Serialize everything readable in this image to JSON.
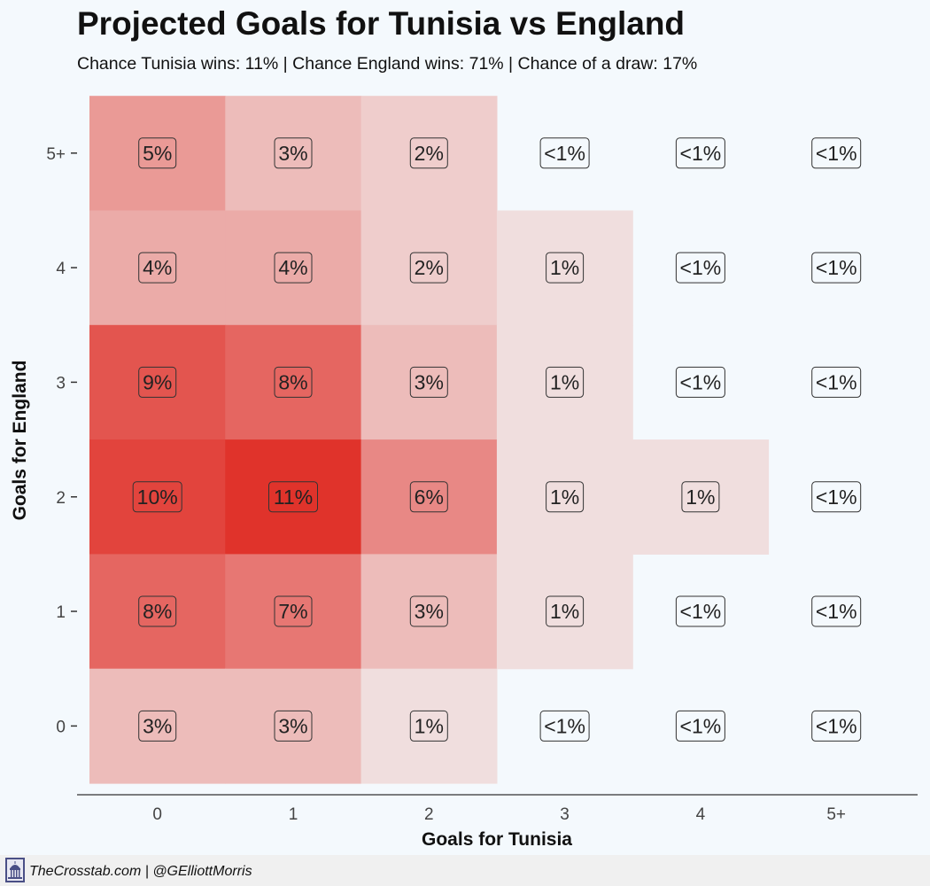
{
  "header": {
    "title": "Projected Goals for Tunisia vs England",
    "subtitle": "Chance Tunisia wins: 11% | Chance England wins: 71% | Chance of a draw: 17%"
  },
  "footer": {
    "credit": "TheCrosstab.com | @GElliottMorris",
    "logo_icon": "capitol-dome-icon"
  },
  "colors": {
    "background": "#f4f9fd",
    "low": "#f2eff0",
    "high": "#e0332b",
    "label_border": "#333333"
  },
  "chart_data": {
    "type": "heatmap",
    "title": "Projected Goals for Tunisia vs England",
    "xlabel": "Goals for Tunisia",
    "ylabel": "Goals for England",
    "x_categories": [
      "0",
      "1",
      "2",
      "3",
      "4",
      "5+"
    ],
    "y_categories": [
      "0",
      "1",
      "2",
      "3",
      "4",
      "5+"
    ],
    "grid": false,
    "cells": [
      {
        "x": "0",
        "y": "5+",
        "value": 5,
        "label": "5%"
      },
      {
        "x": "1",
        "y": "5+",
        "value": 3,
        "label": "3%"
      },
      {
        "x": "2",
        "y": "5+",
        "value": 2,
        "label": "2%"
      },
      {
        "x": "3",
        "y": "5+",
        "value": 0.3,
        "label": "<1%"
      },
      {
        "x": "4",
        "y": "5+",
        "value": 0.1,
        "label": "<1%"
      },
      {
        "x": "5+",
        "y": "5+",
        "value": 0.05,
        "label": "<1%"
      },
      {
        "x": "0",
        "y": "4",
        "value": 4,
        "label": "4%"
      },
      {
        "x": "1",
        "y": "4",
        "value": 4,
        "label": "4%"
      },
      {
        "x": "2",
        "y": "4",
        "value": 2,
        "label": "2%"
      },
      {
        "x": "3",
        "y": "4",
        "value": 1,
        "label": "1%"
      },
      {
        "x": "4",
        "y": "4",
        "value": 0.2,
        "label": "<1%"
      },
      {
        "x": "5+",
        "y": "4",
        "value": 0.05,
        "label": "<1%"
      },
      {
        "x": "0",
        "y": "3",
        "value": 9,
        "label": "9%"
      },
      {
        "x": "1",
        "y": "3",
        "value": 8,
        "label": "8%"
      },
      {
        "x": "2",
        "y": "3",
        "value": 3,
        "label": "3%"
      },
      {
        "x": "3",
        "y": "3",
        "value": 1,
        "label": "1%"
      },
      {
        "x": "4",
        "y": "3",
        "value": 0.2,
        "label": "<1%"
      },
      {
        "x": "5+",
        "y": "3",
        "value": 0.05,
        "label": "<1%"
      },
      {
        "x": "0",
        "y": "2",
        "value": 10,
        "label": "10%"
      },
      {
        "x": "1",
        "y": "2",
        "value": 11,
        "label": "11%"
      },
      {
        "x": "2",
        "y": "2",
        "value": 6,
        "label": "6%"
      },
      {
        "x": "3",
        "y": "2",
        "value": 1,
        "label": "1%"
      },
      {
        "x": "4",
        "y": "2",
        "value": 1,
        "label": "1%"
      },
      {
        "x": "5+",
        "y": "2",
        "value": 0.1,
        "label": "<1%"
      },
      {
        "x": "0",
        "y": "1",
        "value": 8,
        "label": "8%"
      },
      {
        "x": "1",
        "y": "1",
        "value": 7,
        "label": "7%"
      },
      {
        "x": "2",
        "y": "1",
        "value": 3,
        "label": "3%"
      },
      {
        "x": "3",
        "y": "1",
        "value": 1,
        "label": "1%"
      },
      {
        "x": "4",
        "y": "1",
        "value": 0.2,
        "label": "<1%"
      },
      {
        "x": "5+",
        "y": "1",
        "value": 0.05,
        "label": "<1%"
      },
      {
        "x": "0",
        "y": "0",
        "value": 3,
        "label": "3%"
      },
      {
        "x": "1",
        "y": "0",
        "value": 3,
        "label": "3%"
      },
      {
        "x": "2",
        "y": "0",
        "value": 1,
        "label": "1%"
      },
      {
        "x": "3",
        "y": "0",
        "value": 0.3,
        "label": "<1%"
      },
      {
        "x": "4",
        "y": "0",
        "value": 0.1,
        "label": "<1%"
      },
      {
        "x": "5+",
        "y": "0",
        "value": 0.05,
        "label": "<1%"
      }
    ]
  }
}
